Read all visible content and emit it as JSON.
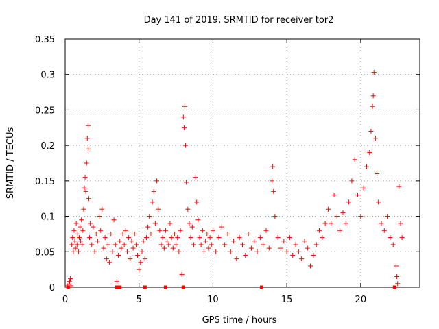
{
  "chart_data": {
    "type": "scatter",
    "title": "Day 141 of 2019, SRMTID for receiver tor2",
    "xlabel": "GPS time / hours",
    "ylabel": "SRMTID / TECUs",
    "xlim": [
      0,
      24
    ],
    "ylim": [
      0,
      0.35
    ],
    "xticks": [
      0,
      5,
      10,
      15,
      20
    ],
    "yticks": [
      0,
      0.05,
      0.1,
      0.15,
      0.2,
      0.25,
      0.3,
      0.35
    ],
    "xtick_labels": [
      "0",
      "5",
      "10",
      "15",
      "20"
    ],
    "ytick_labels": [
      "0",
      "0.05",
      "0.1",
      "0.15",
      "0.2",
      "0.25",
      "0.3",
      "0.35"
    ],
    "grid": true,
    "marker": "plus",
    "color": "#ff0000",
    "series": [
      {
        "points": [
          [
            0.15,
            0.002
          ],
          [
            0.25,
            0.004
          ],
          [
            0.3,
            0.008
          ],
          [
            0.35,
            0.012
          ],
          [
            0.4,
            0.002
          ],
          [
            0.45,
            0.06
          ],
          [
            0.5,
            0.07
          ],
          [
            0.55,
            0.05
          ],
          [
            0.6,
            0.08
          ],
          [
            0.65,
            0.065
          ],
          [
            0.7,
            0.055
          ],
          [
            0.75,
            0.09
          ],
          [
            0.8,
            0.06
          ],
          [
            0.85,
            0.075
          ],
          [
            0.9,
            0.05
          ],
          [
            0.95,
            0.07
          ],
          [
            1.0,
            0.085
          ],
          [
            1.05,
            0.065
          ],
          [
            1.1,
            0.095
          ],
          [
            1.15,
            0.06
          ],
          [
            1.2,
            0.08
          ],
          [
            1.25,
            0.11
          ],
          [
            1.3,
            0.14
          ],
          [
            1.35,
            0.155
          ],
          [
            1.4,
            0.135
          ],
          [
            1.45,
            0.175
          ],
          [
            1.5,
            0.21
          ],
          [
            1.55,
            0.228
          ],
          [
            1.55,
            0.195
          ],
          [
            1.6,
            0.125
          ],
          [
            1.65,
            0.07
          ],
          [
            1.7,
            0.09
          ],
          [
            1.8,
            0.06
          ],
          [
            1.9,
            0.085
          ],
          [
            2.0,
            0.05
          ],
          [
            2.1,
            0.075
          ],
          [
            2.2,
            0.065
          ],
          [
            2.3,
            0.1
          ],
          [
            2.4,
            0.08
          ],
          [
            2.5,
            0.11
          ],
          [
            2.6,
            0.055
          ],
          [
            2.7,
            0.07
          ],
          [
            2.8,
            0.04
          ],
          [
            2.9,
            0.06
          ],
          [
            3.0,
            0.035
          ],
          [
            3.1,
            0.075
          ],
          [
            3.2,
            0.05
          ],
          [
            3.3,
            0.095
          ],
          [
            3.4,
            0.06
          ],
          [
            3.5,
            0.008
          ],
          [
            3.6,
            0.045
          ],
          [
            3.7,
            0.065
          ],
          [
            3.8,
            0.055
          ],
          [
            3.9,
            0.075
          ],
          [
            4.0,
            0.06
          ],
          [
            4.1,
            0.08
          ],
          [
            4.2,
            0.05
          ],
          [
            4.3,
            0.07
          ],
          [
            4.4,
            0.04
          ],
          [
            4.5,
            0.065
          ],
          [
            4.6,
            0.055
          ],
          [
            4.7,
            0.075
          ],
          [
            4.8,
            0.06
          ],
          [
            4.9,
            0.045
          ],
          [
            5.0,
            0.025
          ],
          [
            5.1,
            0.035
          ],
          [
            5.2,
            0.05
          ],
          [
            5.3,
            0.065
          ],
          [
            5.4,
            0.04
          ],
          [
            5.5,
            0.07
          ],
          [
            5.6,
            0.085
          ],
          [
            5.7,
            0.1
          ],
          [
            5.8,
            0.075
          ],
          [
            5.9,
            0.12
          ],
          [
            6.0,
            0.135
          ],
          [
            6.1,
            0.09
          ],
          [
            6.2,
            0.15
          ],
          [
            6.3,
            0.11
          ],
          [
            6.4,
            0.08
          ],
          [
            6.5,
            0.06
          ],
          [
            6.6,
            0.07
          ],
          [
            6.7,
            0.055
          ],
          [
            6.8,
            0.08
          ],
          [
            6.9,
            0.065
          ],
          [
            7.0,
            0.06
          ],
          [
            7.1,
            0.09
          ],
          [
            7.2,
            0.07
          ],
          [
            7.3,
            0.055
          ],
          [
            7.4,
            0.075
          ],
          [
            7.5,
            0.06
          ],
          [
            7.6,
            0.07
          ],
          [
            7.7,
            0.05
          ],
          [
            7.8,
            0.08
          ],
          [
            7.9,
            0.018
          ],
          [
            8.0,
            0.24
          ],
          [
            8.05,
            0.225
          ],
          [
            8.1,
            0.255
          ],
          [
            8.15,
            0.2
          ],
          [
            8.2,
            0.148
          ],
          [
            8.3,
            0.11
          ],
          [
            8.4,
            0.09
          ],
          [
            8.5,
            0.07
          ],
          [
            8.6,
            0.085
          ],
          [
            8.7,
            0.06
          ],
          [
            8.8,
            0.155
          ],
          [
            8.9,
            0.12
          ],
          [
            9.0,
            0.095
          ],
          [
            9.1,
            0.07
          ],
          [
            9.2,
            0.06
          ],
          [
            9.3,
            0.08
          ],
          [
            9.4,
            0.05
          ],
          [
            9.5,
            0.065
          ],
          [
            9.6,
            0.075
          ],
          [
            9.7,
            0.055
          ],
          [
            9.8,
            0.07
          ],
          [
            9.9,
            0.06
          ],
          [
            10.0,
            0.08
          ],
          [
            10.2,
            0.05
          ],
          [
            10.4,
            0.07
          ],
          [
            10.6,
            0.085
          ],
          [
            10.8,
            0.06
          ],
          [
            11.0,
            0.075
          ],
          [
            11.2,
            0.05
          ],
          [
            11.4,
            0.065
          ],
          [
            11.6,
            0.04
          ],
          [
            11.8,
            0.07
          ],
          [
            12.0,
            0.06
          ],
          [
            12.2,
            0.045
          ],
          [
            12.4,
            0.075
          ],
          [
            12.6,
            0.055
          ],
          [
            12.8,
            0.065
          ],
          [
            13.0,
            0.05
          ],
          [
            13.2,
            0.07
          ],
          [
            13.4,
            0.06
          ],
          [
            13.6,
            0.08
          ],
          [
            13.8,
            0.055
          ],
          [
            14.0,
            0.15
          ],
          [
            14.05,
            0.17
          ],
          [
            14.1,
            0.135
          ],
          [
            14.2,
            0.1
          ],
          [
            14.4,
            0.07
          ],
          [
            14.6,
            0.055
          ],
          [
            14.8,
            0.065
          ],
          [
            15.0,
            0.05
          ],
          [
            15.2,
            0.07
          ],
          [
            15.4,
            0.045
          ],
          [
            15.6,
            0.06
          ],
          [
            15.8,
            0.05
          ],
          [
            16.0,
            0.04
          ],
          [
            16.2,
            0.065
          ],
          [
            16.4,
            0.055
          ],
          [
            16.6,
            0.03
          ],
          [
            16.8,
            0.045
          ],
          [
            17.0,
            0.06
          ],
          [
            17.2,
            0.08
          ],
          [
            17.4,
            0.07
          ],
          [
            17.6,
            0.09
          ],
          [
            17.8,
            0.11
          ],
          [
            18.0,
            0.09
          ],
          [
            18.2,
            0.13
          ],
          [
            18.4,
            0.1
          ],
          [
            18.6,
            0.08
          ],
          [
            18.8,
            0.105
          ],
          [
            19.0,
            0.09
          ],
          [
            19.2,
            0.12
          ],
          [
            19.4,
            0.15
          ],
          [
            19.6,
            0.18
          ],
          [
            19.8,
            0.13
          ],
          [
            20.0,
            0.1
          ],
          [
            20.2,
            0.14
          ],
          [
            20.4,
            0.17
          ],
          [
            20.6,
            0.19
          ],
          [
            20.7,
            0.22
          ],
          [
            20.8,
            0.255
          ],
          [
            20.85,
            0.27
          ],
          [
            20.9,
            0.303
          ],
          [
            21.0,
            0.21
          ],
          [
            21.1,
            0.16
          ],
          [
            21.2,
            0.12
          ],
          [
            21.4,
            0.09
          ],
          [
            21.6,
            0.08
          ],
          [
            21.8,
            0.1
          ],
          [
            22.0,
            0.07
          ],
          [
            22.2,
            0.06
          ],
          [
            22.4,
            0.03
          ],
          [
            22.45,
            0.015
          ],
          [
            22.5,
            0.005
          ],
          [
            22.6,
            0.142
          ],
          [
            22.7,
            0.09
          ],
          [
            22.8,
            0.07
          ]
        ]
      }
    ],
    "zero_markers_x": [
      0.2,
      3.5,
      3.7,
      5.4,
      6.8,
      8.0,
      13.3,
      22.3
    ]
  }
}
